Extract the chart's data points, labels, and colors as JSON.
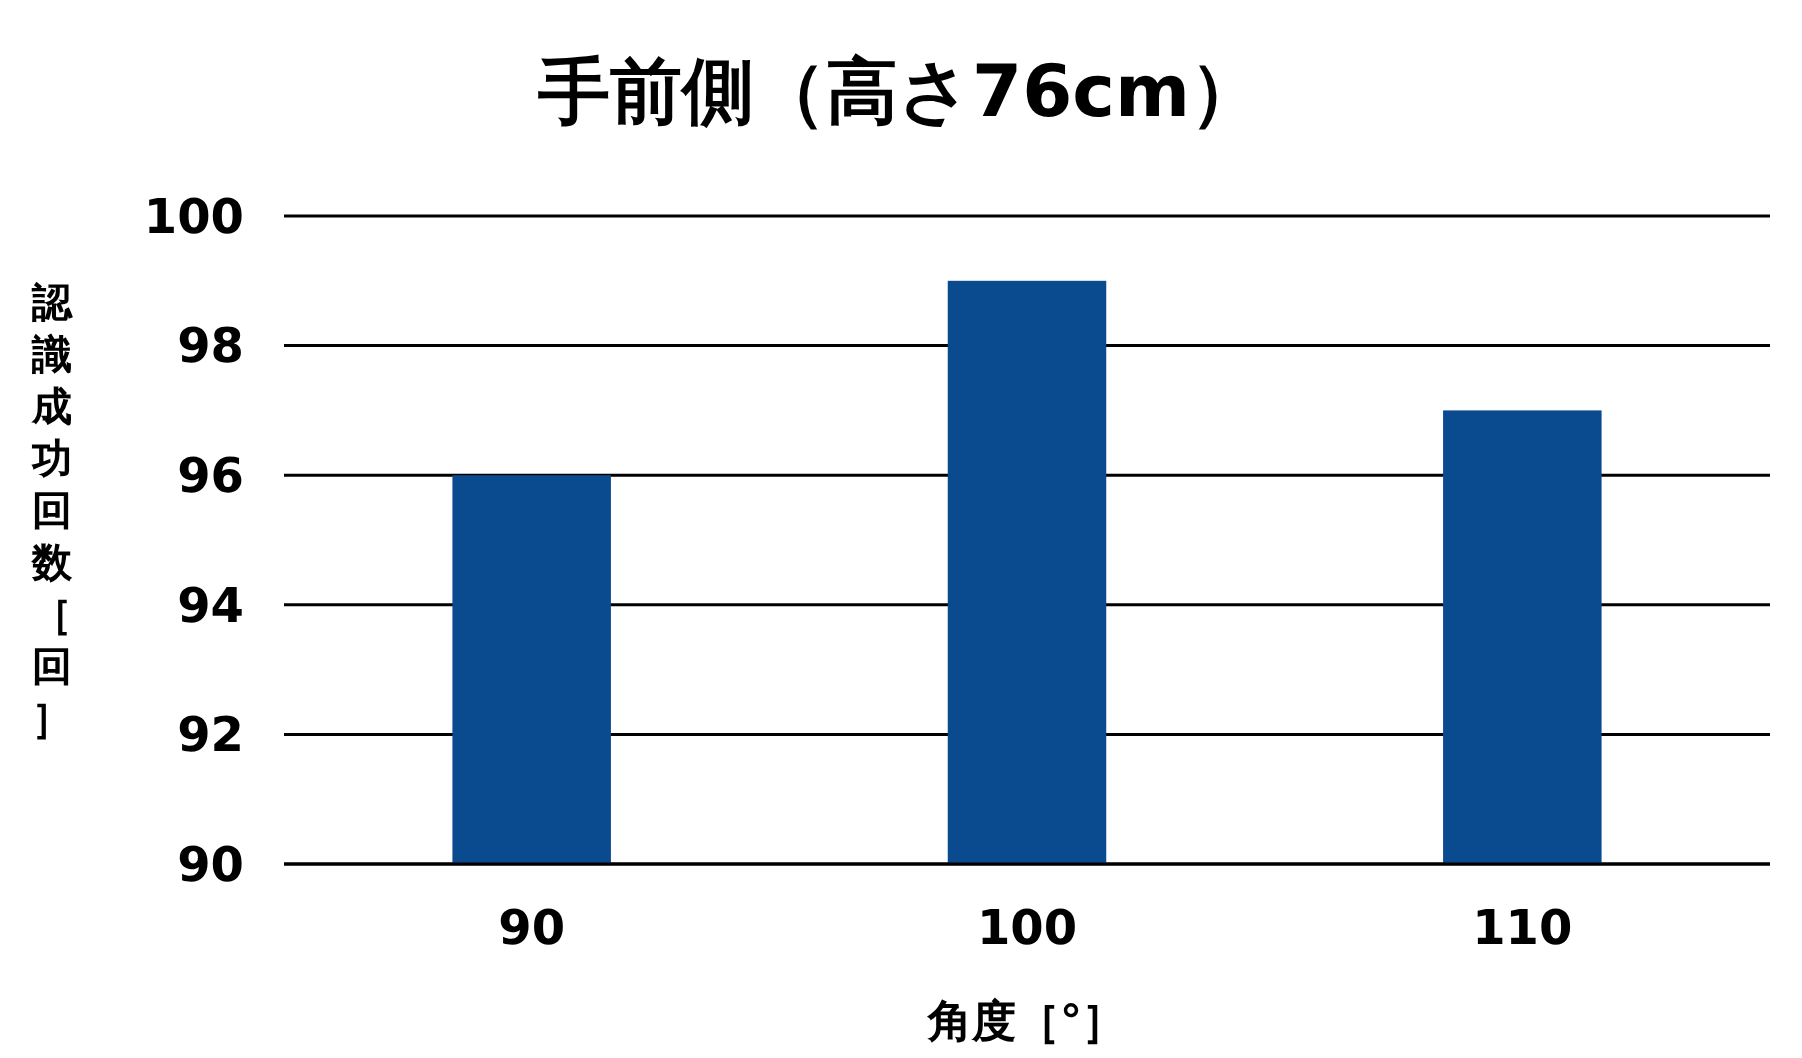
{
  "chart_data": {
    "type": "bar",
    "title": "手前側（高さ76cm）",
    "xlabel": "角度［°］",
    "ylabel": "認識成功回数［回］",
    "categories": [
      "90",
      "100",
      "110"
    ],
    "values": [
      96,
      99,
      97
    ],
    "color": "#0a4a8f",
    "ylim": [
      90,
      100
    ],
    "yticks": [
      90,
      92,
      94,
      96,
      98,
      100
    ],
    "grid": "y"
  }
}
